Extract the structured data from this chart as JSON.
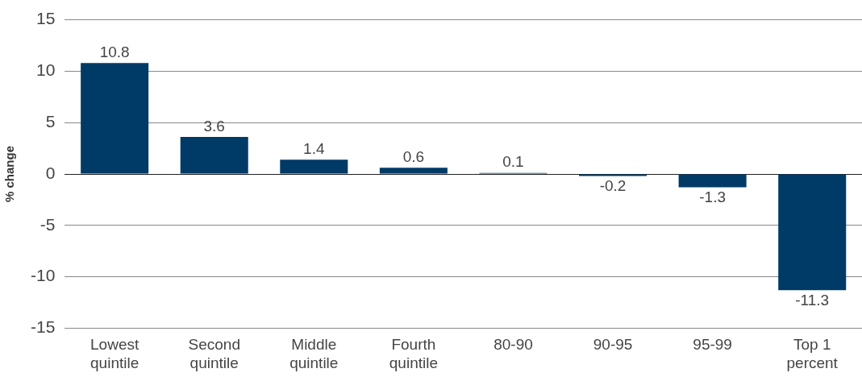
{
  "chart_data": {
    "type": "bar",
    "ylabel": "% change",
    "categories": [
      "Lowest quintile",
      "Second quintile",
      "Middle quintile",
      "Fourth quintile",
      "80-90",
      "90-95",
      "95-99",
      "Top 1 percent"
    ],
    "values": [
      10.8,
      3.6,
      1.4,
      0.6,
      0.1,
      -0.2,
      -1.3,
      -11.3
    ],
    "color": "#003a66",
    "ylim": [
      -15,
      15
    ],
    "yticks": [
      -15,
      -10,
      -5,
      0,
      5,
      10,
      15
    ],
    "grid": "y",
    "data_labels": true
  }
}
